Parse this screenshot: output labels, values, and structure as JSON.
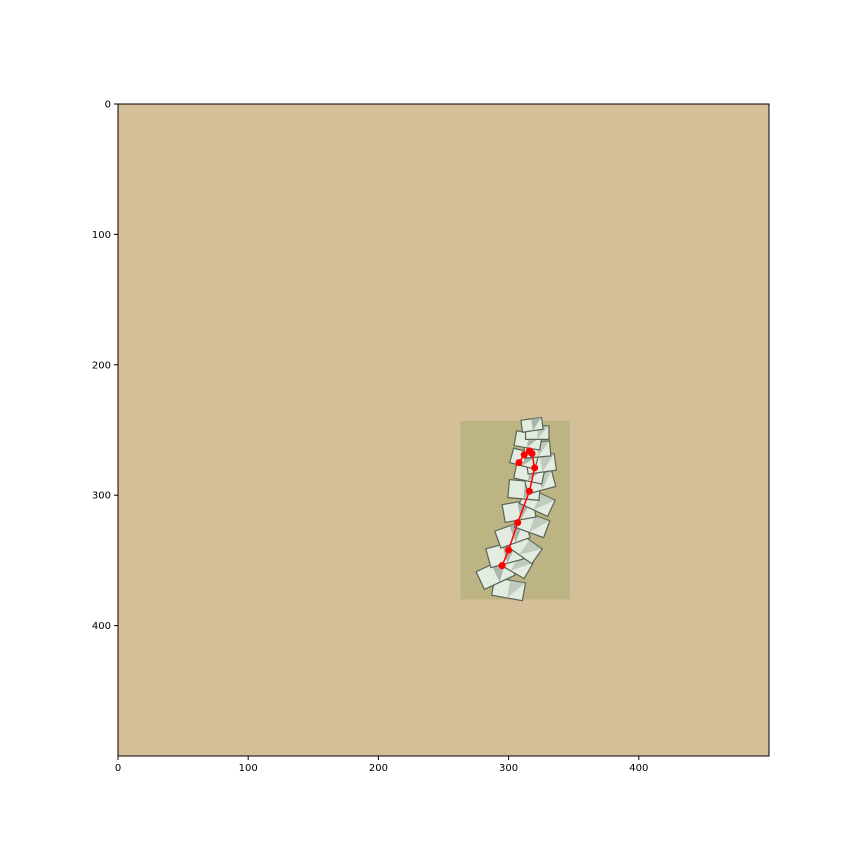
{
  "chart_data": {
    "type": "scatter",
    "title": "",
    "xlabel": "",
    "ylabel": "",
    "xlim": [
      0,
      500
    ],
    "ylim": [
      500,
      0
    ],
    "y_inverted": true,
    "grid": false,
    "legend": "none",
    "x_ticks": [
      0,
      100,
      200,
      300,
      400
    ],
    "y_ticks": [
      0,
      100,
      200,
      300,
      400
    ],
    "x_tick_labels": [
      "0",
      "100",
      "200",
      "300",
      "400"
    ],
    "y_tick_labels": [
      "0",
      "100",
      "200",
      "300",
      "400"
    ],
    "background_color": "#d4bf99",
    "highlight_region": {
      "x": [
        263,
        347
      ],
      "y": [
        243,
        380
      ],
      "color": "#a8ac70"
    },
    "object": {
      "description_icon": "folded-paper-stack",
      "colors": [
        "#e2ece0",
        "#9ea99c",
        "#5a6456"
      ]
    },
    "series": [
      {
        "marker_color": "#ff0000",
        "line_color": "#ff0000",
        "x": [
          295,
          300,
          307,
          316,
          320,
          318,
          317,
          316,
          312,
          308
        ],
        "y": [
          354,
          342,
          321,
          297,
          279,
          268,
          267,
          266,
          269,
          275
        ]
      }
    ]
  }
}
